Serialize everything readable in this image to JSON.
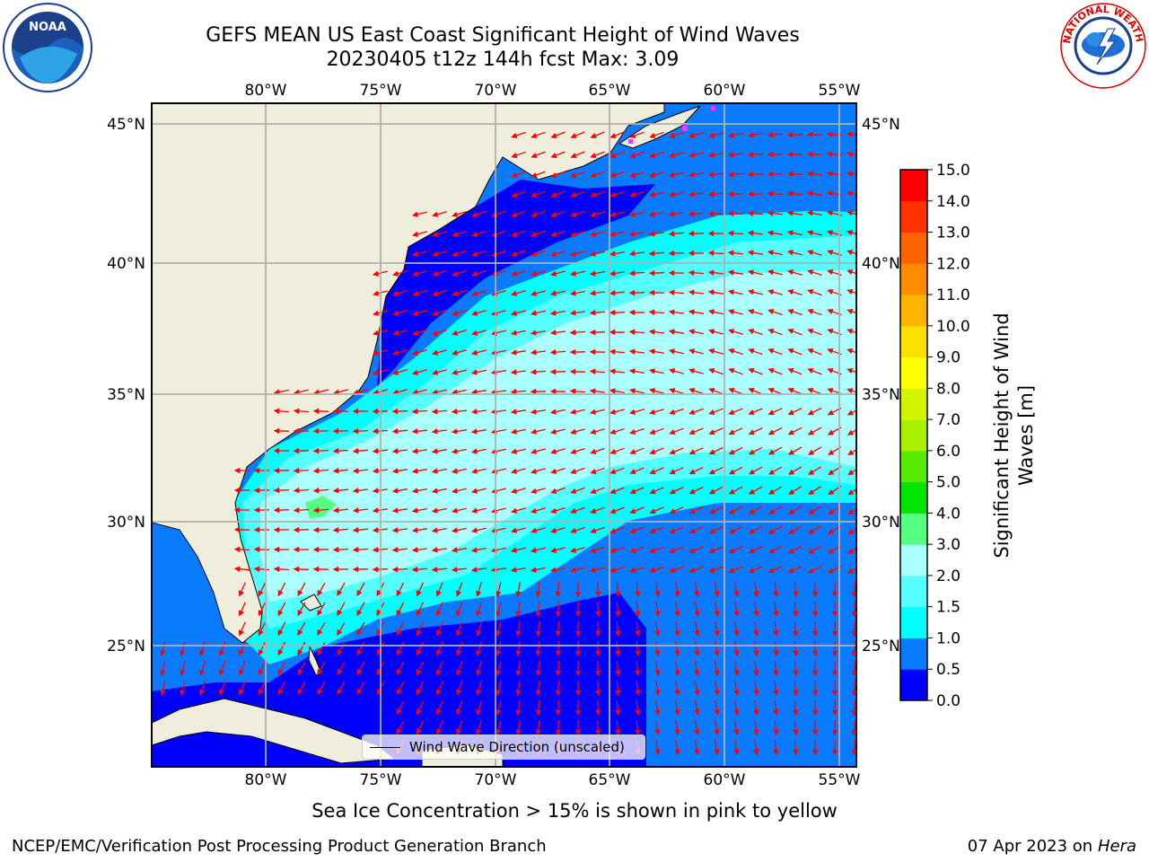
{
  "title": {
    "line1": "GEFS MEAN US East Coast Significant Height of Wind Waves",
    "line2": "20230405 t12z 144h fcst   Max: 3.09"
  },
  "logos": {
    "noaa": {
      "text": "NOAA",
      "icon": "noaa-logo-icon"
    },
    "nws": {
      "text": "NATIONAL WEATHER SERVICE",
      "icon": "nws-logo-icon"
    }
  },
  "map": {
    "lon_labels": [
      "80°W",
      "75°W",
      "70°W",
      "65°W",
      "60°W",
      "55°W"
    ],
    "lat_labels": [
      "45°N",
      "40°N",
      "35°N",
      "30°N",
      "25°N"
    ],
    "lon_range": [
      -85,
      -55
    ],
    "lat_range": [
      20.5,
      46
    ],
    "colors": {
      "land": "#efeedc",
      "grid": "#b0b0b0",
      "arrows": "#ff0000"
    }
  },
  "legend": {
    "label": "Wind Wave Direction (unscaled)"
  },
  "colorbar": {
    "title": "Significant Height of Wind Waves [m]",
    "title_lines": [
      "Significant Height of Wind",
      "Waves [m]"
    ],
    "ticks": [
      "0.0",
      "0.5",
      "1.0",
      "1.5",
      "2.0",
      "3.0",
      "4.0",
      "5.0",
      "6.0",
      "7.0",
      "8.0",
      "9.0",
      "10.0",
      "11.0",
      "12.0",
      "13.0",
      "14.0",
      "15.0"
    ],
    "colors": [
      "#0000ff",
      "#0a7bff",
      "#00ffff",
      "#55ffff",
      "#aaffff",
      "#55ff7f",
      "#00e600",
      "#55ea00",
      "#aaee00",
      "#d4f500",
      "#ffff00",
      "#ffe000",
      "#ffb400",
      "#ff8c00",
      "#ff6400",
      "#ff3200",
      "#ff0000"
    ]
  },
  "footer": {
    "sea_ice": "Sea Ice Concentration > 15% is shown in pink to yellow",
    "credit": "NCEP/EMC/Verification Post Processing Product Generation Branch",
    "date": "07 Apr 2023 on",
    "host": "Hera"
  }
}
